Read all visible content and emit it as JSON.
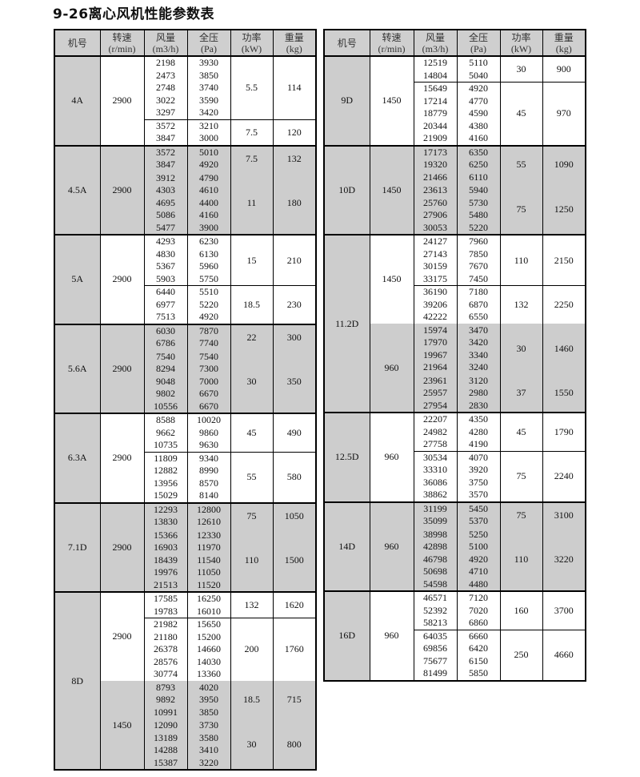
{
  "title": "9-26离心风机性能参数表",
  "headers": [
    {
      "name": "机号",
      "unit": ""
    },
    {
      "name": "转速",
      "unit": "(r/min)"
    },
    {
      "name": "风量",
      "unit": "(m3/h)"
    },
    {
      "name": "全压",
      "unit": "(Pa)"
    },
    {
      "name": "功率",
      "unit": "(kW)"
    },
    {
      "name": "重量",
      "unit": "(kg)"
    }
  ],
  "colors": {
    "shade": "#cdcdcd",
    "border": "#000000"
  },
  "tables": [
    {
      "groups": [
        {
          "model": "4A",
          "speeds": [
            {
              "rpm": "2900",
              "shaded": false,
              "blocks": [
                {
                  "power": "5.5",
                  "weight": "114",
                  "rows": [
                    [
                      "2198",
                      "3930"
                    ],
                    [
                      "2473",
                      "3850"
                    ],
                    [
                      "2748",
                      "3740"
                    ],
                    [
                      "3022",
                      "3590"
                    ],
                    [
                      "3297",
                      "3420"
                    ]
                  ]
                },
                {
                  "power": "7.5",
                  "weight": "120",
                  "rows": [
                    [
                      "3572",
                      "3210"
                    ],
                    [
                      "3847",
                      "3000"
                    ]
                  ]
                }
              ]
            }
          ]
        },
        {
          "model": "4.5A",
          "speeds": [
            {
              "rpm": "2900",
              "shaded": true,
              "blocks": [
                {
                  "power": "7.5",
                  "weight": "132",
                  "rows": [
                    [
                      "3572",
                      "5010"
                    ],
                    [
                      "3847",
                      "4920"
                    ]
                  ]
                },
                {
                  "power": "11",
                  "weight": "180",
                  "rows": [
                    [
                      "3912",
                      "4790"
                    ],
                    [
                      "4303",
                      "4610"
                    ],
                    [
                      "4695",
                      "4400"
                    ],
                    [
                      "5086",
                      "4160"
                    ],
                    [
                      "5477",
                      "3900"
                    ]
                  ]
                }
              ]
            }
          ]
        },
        {
          "model": "5A",
          "speeds": [
            {
              "rpm": "2900",
              "shaded": false,
              "blocks": [
                {
                  "power": "15",
                  "weight": "210",
                  "rows": [
                    [
                      "4293",
                      "6230"
                    ],
                    [
                      "4830",
                      "6130"
                    ],
                    [
                      "5367",
                      "5960"
                    ],
                    [
                      "5903",
                      "5750"
                    ]
                  ]
                },
                {
                  "power": "18.5",
                  "weight": "230",
                  "rows": [
                    [
                      "6440",
                      "5510"
                    ],
                    [
                      "6977",
                      "5220"
                    ],
                    [
                      "7513",
                      "4920"
                    ]
                  ]
                }
              ]
            }
          ]
        },
        {
          "model": "5.6A",
          "speeds": [
            {
              "rpm": "2900",
              "shaded": true,
              "blocks": [
                {
                  "power": "22",
                  "weight": "300",
                  "rows": [
                    [
                      "6030",
                      "7870"
                    ],
                    [
                      "6786",
                      "7740"
                    ]
                  ]
                },
                {
                  "power": "30",
                  "weight": "350",
                  "rows": [
                    [
                      "7540",
                      "7540"
                    ],
                    [
                      "8294",
                      "7300"
                    ],
                    [
                      "9048",
                      "7000"
                    ],
                    [
                      "9802",
                      "6670"
                    ],
                    [
                      "10556",
                      "6670"
                    ]
                  ]
                }
              ]
            }
          ]
        },
        {
          "model": "6.3A",
          "speeds": [
            {
              "rpm": "2900",
              "shaded": false,
              "blocks": [
                {
                  "power": "45",
                  "weight": "490",
                  "rows": [
                    [
                      "8588",
                      "10020"
                    ],
                    [
                      "9662",
                      "9860"
                    ],
                    [
                      "10735",
                      "9630"
                    ]
                  ]
                },
                {
                  "power": "55",
                  "weight": "580",
                  "rows": [
                    [
                      "11809",
                      "9340"
                    ],
                    [
                      "12882",
                      "8990"
                    ],
                    [
                      "13956",
                      "8570"
                    ],
                    [
                      "15029",
                      "8140"
                    ]
                  ]
                }
              ]
            }
          ]
        },
        {
          "model": "7.1D",
          "speeds": [
            {
              "rpm": "2900",
              "shaded": true,
              "blocks": [
                {
                  "power": "75",
                  "weight": "1050",
                  "rows": [
                    [
                      "12293",
                      "12800"
                    ],
                    [
                      "13830",
                      "12610"
                    ]
                  ]
                },
                {
                  "power": "110",
                  "weight": "1500",
                  "rows": [
                    [
                      "15366",
                      "12330"
                    ],
                    [
                      "16903",
                      "11970"
                    ],
                    [
                      "18439",
                      "11540"
                    ],
                    [
                      "19976",
                      "11050"
                    ],
                    [
                      "21513",
                      "11520"
                    ]
                  ]
                }
              ]
            }
          ]
        },
        {
          "model": "8D",
          "speeds": [
            {
              "rpm": "2900",
              "shaded": false,
              "blocks": [
                {
                  "power": "132",
                  "weight": "1620",
                  "rows": [
                    [
                      "17585",
                      "16250"
                    ],
                    [
                      "19783",
                      "16010"
                    ]
                  ]
                },
                {
                  "power": "200",
                  "weight": "1760",
                  "rows": [
                    [
                      "21982",
                      "15650"
                    ],
                    [
                      "21180",
                      "15200"
                    ],
                    [
                      "26378",
                      "14660"
                    ],
                    [
                      "28576",
                      "14030"
                    ],
                    [
                      "30774",
                      "13360"
                    ]
                  ]
                }
              ]
            },
            {
              "rpm": "1450",
              "shaded": true,
              "blocks": [
                {
                  "power": "18.5",
                  "weight": "715",
                  "rows": [
                    [
                      "8793",
                      "4020"
                    ],
                    [
                      "9892",
                      "3950"
                    ],
                    [
                      "10991",
                      "3850"
                    ]
                  ]
                },
                {
                  "power": "30",
                  "weight": "800",
                  "rows": [
                    [
                      "12090",
                      "3730"
                    ],
                    [
                      "13189",
                      "3580"
                    ],
                    [
                      "14288",
                      "3410"
                    ],
                    [
                      "15387",
                      "3220"
                    ]
                  ]
                }
              ]
            }
          ]
        }
      ]
    },
    {
      "groups": [
        {
          "model": "9D",
          "speeds": [
            {
              "rpm": "1450",
              "shaded": false,
              "blocks": [
                {
                  "power": "30",
                  "weight": "900",
                  "rows": [
                    [
                      "12519",
                      "5110"
                    ],
                    [
                      "14804",
                      "5040"
                    ]
                  ]
                },
                {
                  "power": "45",
                  "weight": "970",
                  "rows": [
                    [
                      "15649",
                      "4920"
                    ],
                    [
                      "17214",
                      "4770"
                    ],
                    [
                      "18779",
                      "4590"
                    ],
                    [
                      "20344",
                      "4380"
                    ],
                    [
                      "21909",
                      "4160"
                    ]
                  ]
                }
              ]
            }
          ]
        },
        {
          "model": "10D",
          "speeds": [
            {
              "rpm": "1450",
              "shaded": true,
              "blocks": [
                {
                  "power": "55",
                  "weight": "1090",
                  "rows": [
                    [
                      "17173",
                      "6350"
                    ],
                    [
                      "19320",
                      "6250"
                    ],
                    [
                      "21466",
                      "6110"
                    ]
                  ]
                },
                {
                  "power": "75",
                  "weight": "1250",
                  "rows": [
                    [
                      "23613",
                      "5940"
                    ],
                    [
                      "25760",
                      "5730"
                    ],
                    [
                      "27906",
                      "5480"
                    ],
                    [
                      "30053",
                      "5220"
                    ]
                  ]
                }
              ]
            }
          ]
        },
        {
          "model": "11.2D",
          "speeds": [
            {
              "rpm": "1450",
              "shaded": false,
              "blocks": [
                {
                  "power": "110",
                  "weight": "2150",
                  "rows": [
                    [
                      "24127",
                      "7960"
                    ],
                    [
                      "27143",
                      "7850"
                    ],
                    [
                      "30159",
                      "7670"
                    ],
                    [
                      "33175",
                      "7450"
                    ]
                  ]
                },
                {
                  "power": "132",
                  "weight": "2250",
                  "rows": [
                    [
                      "36190",
                      "7180"
                    ],
                    [
                      "39206",
                      "6870"
                    ],
                    [
                      "42222",
                      "6550"
                    ]
                  ]
                }
              ]
            },
            {
              "rpm": "960",
              "shaded": true,
              "blocks": [
                {
                  "power": "30",
                  "weight": "1460",
                  "rows": [
                    [
                      "15974",
                      "3470"
                    ],
                    [
                      "17970",
                      "3420"
                    ],
                    [
                      "19967",
                      "3340"
                    ],
                    [
                      "21964",
                      "3240"
                    ]
                  ]
                },
                {
                  "power": "37",
                  "weight": "1550",
                  "rows": [
                    [
                      "23961",
                      "3120"
                    ],
                    [
                      "25957",
                      "2980"
                    ],
                    [
                      "27954",
                      "2830"
                    ]
                  ]
                }
              ]
            }
          ]
        },
        {
          "model": "12.5D",
          "speeds": [
            {
              "rpm": "960",
              "shaded": false,
              "blocks": [
                {
                  "power": "45",
                  "weight": "1790",
                  "rows": [
                    [
                      "22207",
                      "4350"
                    ],
                    [
                      "24982",
                      "4280"
                    ],
                    [
                      "27758",
                      "4190"
                    ]
                  ]
                },
                {
                  "power": "75",
                  "weight": "2240",
                  "rows": [
                    [
                      "30534",
                      "4070"
                    ],
                    [
                      "33310",
                      "3920"
                    ],
                    [
                      "36086",
                      "3750"
                    ],
                    [
                      "38862",
                      "3570"
                    ]
                  ]
                }
              ]
            }
          ]
        },
        {
          "model": "14D",
          "speeds": [
            {
              "rpm": "960",
              "shaded": true,
              "blocks": [
                {
                  "power": "75",
                  "weight": "3100",
                  "rows": [
                    [
                      "31199",
                      "5450"
                    ],
                    [
                      "35099",
                      "5370"
                    ]
                  ]
                },
                {
                  "power": "110",
                  "weight": "3220",
                  "rows": [
                    [
                      "38998",
                      "5250"
                    ],
                    [
                      "42898",
                      "5100"
                    ],
                    [
                      "46798",
                      "4920"
                    ],
                    [
                      "50698",
                      "4710"
                    ],
                    [
                      "54598",
                      "4480"
                    ]
                  ]
                }
              ]
            }
          ]
        },
        {
          "model": "16D",
          "speeds": [
            {
              "rpm": "960",
              "shaded": false,
              "blocks": [
                {
                  "power": "160",
                  "weight": "3700",
                  "rows": [
                    [
                      "46571",
                      "7120"
                    ],
                    [
                      "52392",
                      "7020"
                    ],
                    [
                      "58213",
                      "6860"
                    ]
                  ]
                },
                {
                  "power": "250",
                  "weight": "4660",
                  "rows": [
                    [
                      "64035",
                      "6660"
                    ],
                    [
                      "69856",
                      "6420"
                    ],
                    [
                      "75677",
                      "6150"
                    ],
                    [
                      "81499",
                      "5850"
                    ]
                  ]
                }
              ]
            }
          ]
        }
      ]
    }
  ]
}
